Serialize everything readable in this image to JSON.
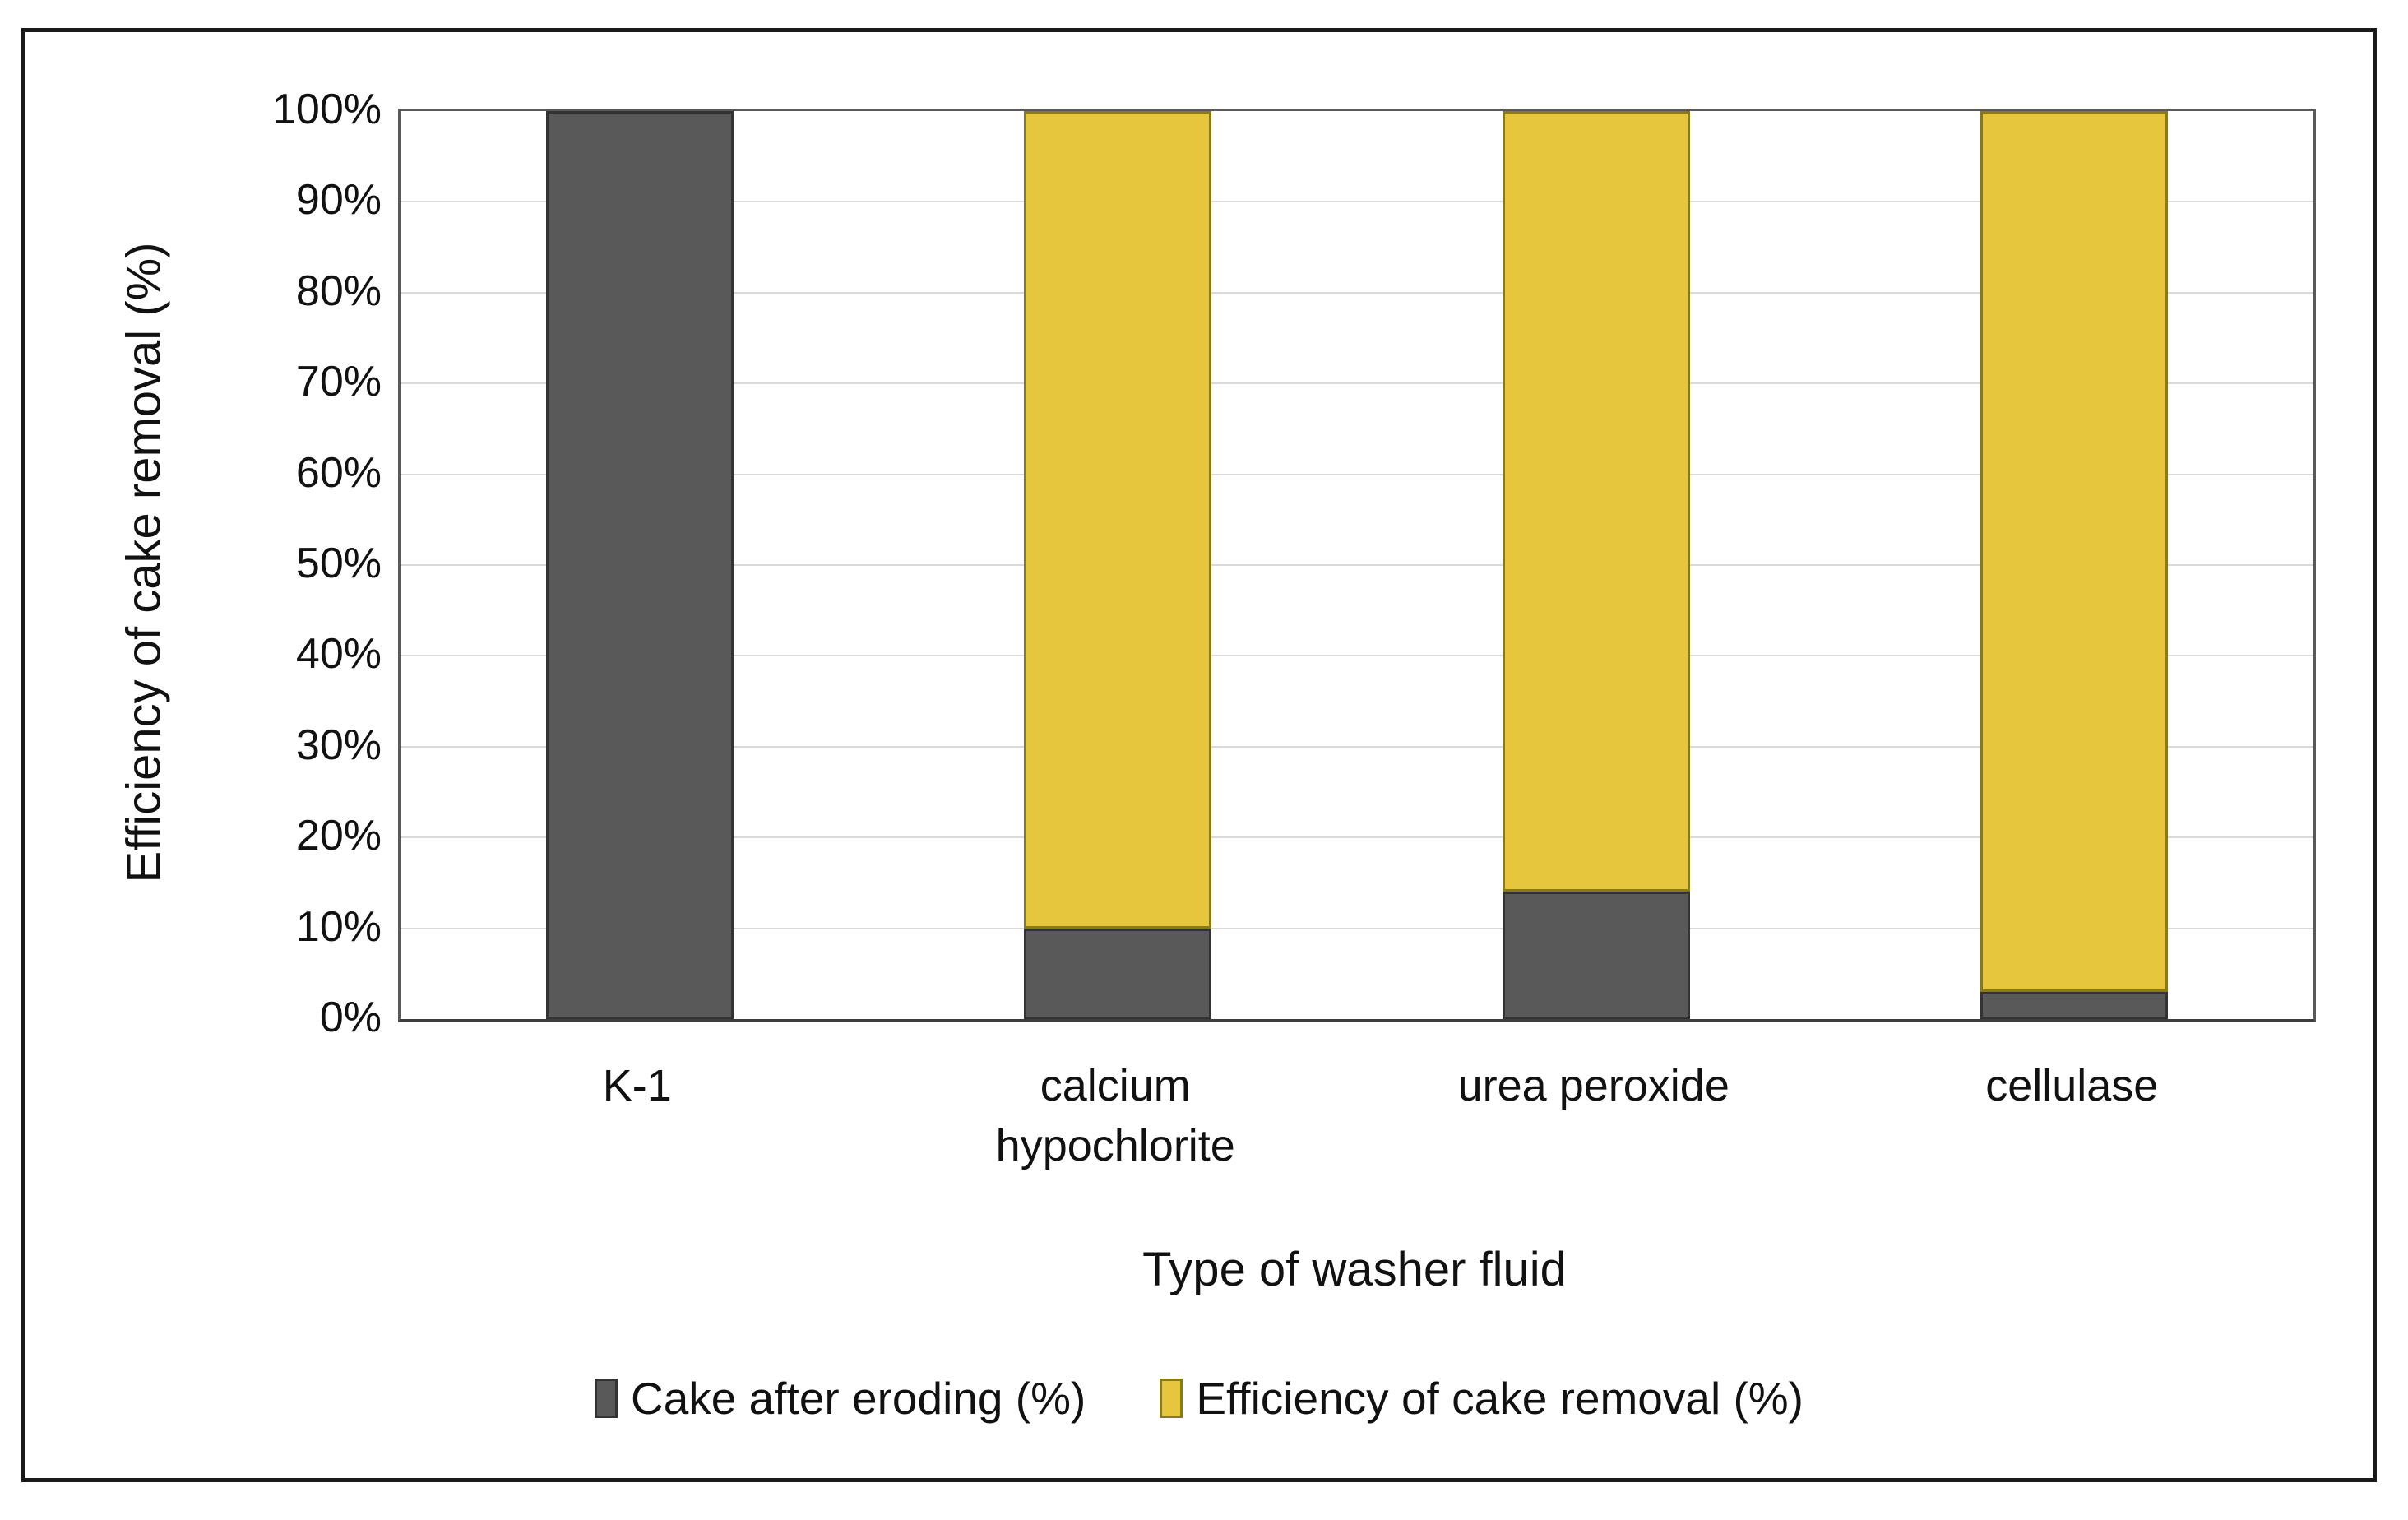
{
  "chart_data": {
    "type": "bar",
    "stacked": true,
    "title": "",
    "xlabel": "Type of washer fluid",
    "ylabel": "Efficiency of cake removal (%)",
    "categories": [
      "K-1",
      "calcium hypochlorite",
      "urea peroxide",
      "cellulase"
    ],
    "series": [
      {
        "name": "Cake after eroding (%)",
        "color": "#595959",
        "border_color": "#333333",
        "values": [
          100,
          10,
          14,
          3
        ]
      },
      {
        "name": "Efficiency of cake removal (%)",
        "color": "#E5C63C",
        "border_color": "#8a7918",
        "values": [
          0,
          90,
          86,
          97
        ]
      }
    ],
    "ylim": [
      0,
      100
    ],
    "ytick_step": 10,
    "y_tick_labels": [
      "0%",
      "10%",
      "20%",
      "30%",
      "40%",
      "50%",
      "60%",
      "70%",
      "80%",
      "90%",
      "100%"
    ],
    "grid": true,
    "gridline_color": "#d9d9d9",
    "legend_position": "bottom",
    "legend": [
      {
        "label": "Cake after eroding (%)",
        "color": "#595959",
        "border_color": "#333333"
      },
      {
        "label": "Efficiency of cake removal (%)",
        "color": "#E5C63C",
        "border_color": "#8a7918"
      }
    ]
  }
}
